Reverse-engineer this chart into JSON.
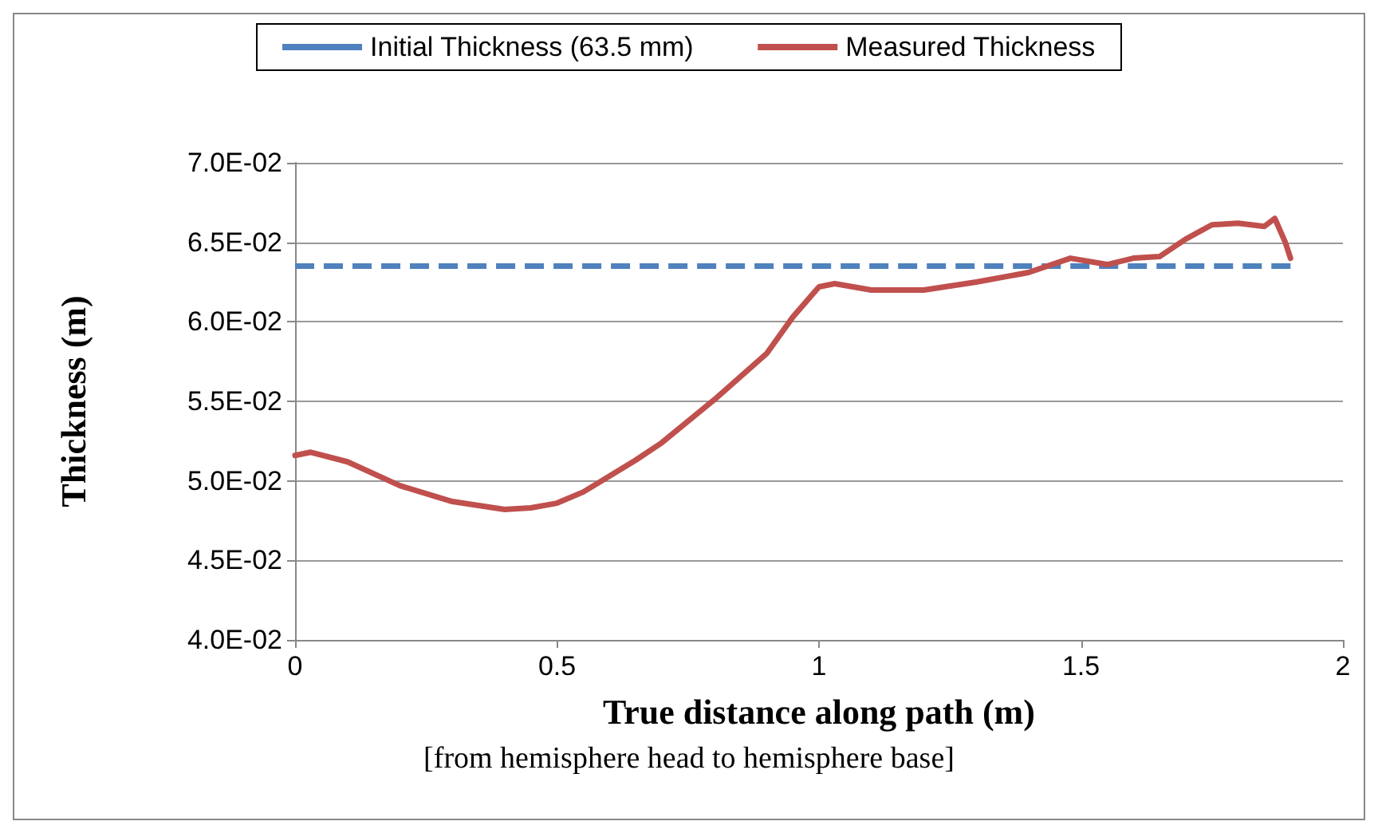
{
  "chart_data": {
    "type": "line",
    "xlabel": "True distance along path (m)",
    "ylabel": "Thickness (m)",
    "annotations": [
      "[from hemisphere head to hemisphere base]"
    ],
    "xlim": [
      0,
      2
    ],
    "xticks": [
      0,
      0.5,
      1,
      1.5,
      2
    ],
    "ylim": [
      0.04,
      0.07
    ],
    "yticks": [
      {
        "value": 0.04,
        "label": "4.0E-02"
      },
      {
        "value": 0.045,
        "label": "4.5E-02"
      },
      {
        "value": 0.05,
        "label": "5.0E-02"
      },
      {
        "value": 0.055,
        "label": "5.5E-02"
      },
      {
        "value": 0.06,
        "label": "6.0E-02"
      },
      {
        "value": 0.065,
        "label": "6.5E-02"
      },
      {
        "value": 0.07,
        "label": "7.0E-02"
      }
    ],
    "grid": "y",
    "legend": "top",
    "marker": "none",
    "series": [
      {
        "name": "Initial Thickness (63.5 mm)",
        "color": "#4f81bd",
        "line_style": "dashed",
        "x": [
          0,
          1.9
        ],
        "values": [
          0.0635,
          0.0635
        ]
      },
      {
        "name": "Measured Thickness",
        "color": "#c0504d",
        "line_style": "solid",
        "x": [
          0,
          0.03,
          0.1,
          0.2,
          0.3,
          0.4,
          0.45,
          0.5,
          0.55,
          0.6,
          0.65,
          0.7,
          0.8,
          0.9,
          0.95,
          1.0,
          1.03,
          1.1,
          1.2,
          1.3,
          1.4,
          1.48,
          1.55,
          1.6,
          1.65,
          1.7,
          1.75,
          1.8,
          1.85,
          1.87,
          1.89,
          1.9
        ],
        "values": [
          0.0516,
          0.0518,
          0.0512,
          0.0497,
          0.0487,
          0.0482,
          0.0483,
          0.0486,
          0.0493,
          0.0503,
          0.0513,
          0.0524,
          0.0551,
          0.058,
          0.0603,
          0.0622,
          0.0624,
          0.062,
          0.062,
          0.0625,
          0.0631,
          0.064,
          0.0636,
          0.064,
          0.0641,
          0.0652,
          0.0661,
          0.0662,
          0.066,
          0.0665,
          0.065,
          0.064
        ]
      }
    ]
  }
}
